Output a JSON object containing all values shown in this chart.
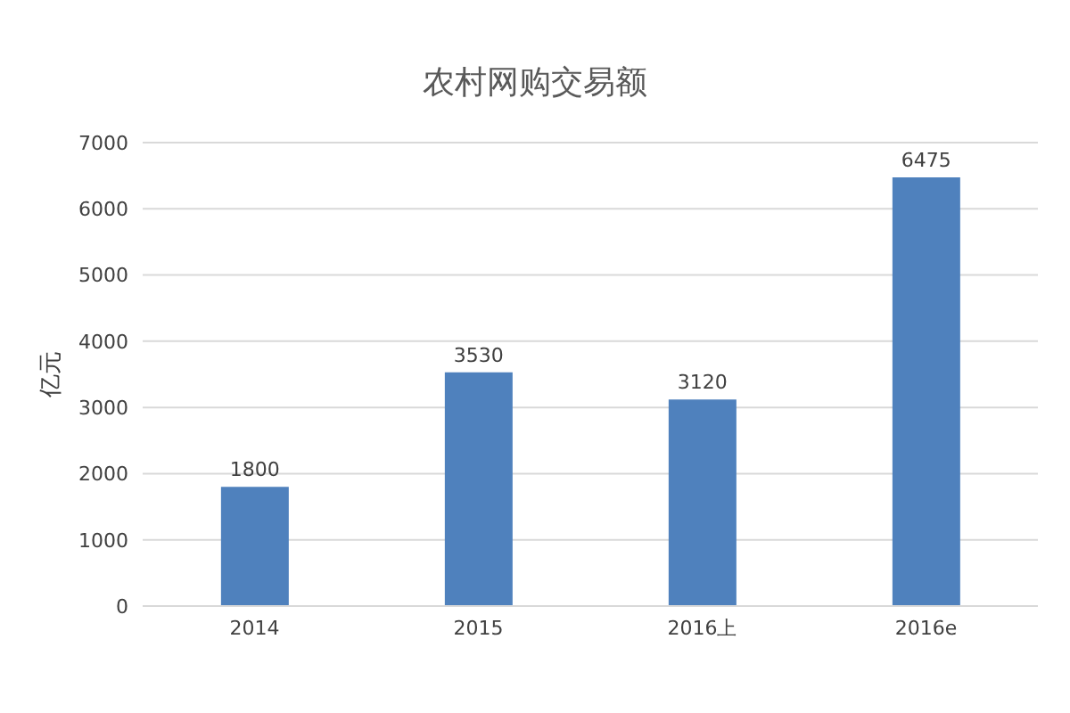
{
  "chart_data": {
    "type": "bar",
    "title": "农村网购交易额",
    "ylabel": "亿元",
    "categories": [
      "2014",
      "2015",
      "2016上",
      "2016e"
    ],
    "values": [
      1800,
      3530,
      3120,
      6475
    ],
    "color": "#4f81bd",
    "ylim": [
      0,
      7000
    ],
    "yticks": [
      0,
      1000,
      2000,
      3000,
      4000,
      5000,
      6000,
      7000
    ],
    "grid": "y",
    "data_labels": true
  }
}
